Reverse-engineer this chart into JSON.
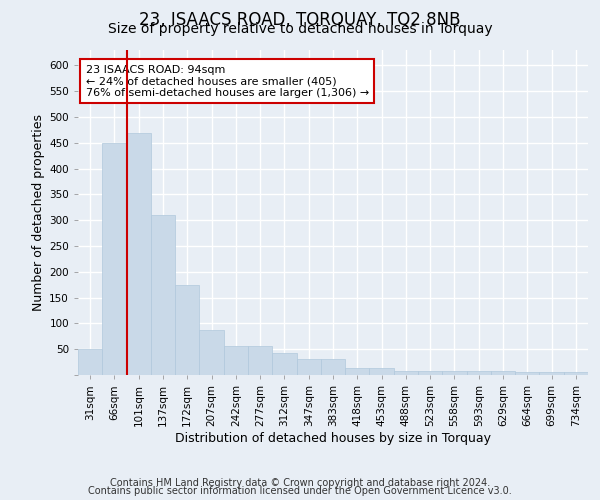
{
  "title": "23, ISAACS ROAD, TORQUAY, TQ2 8NB",
  "subtitle": "Size of property relative to detached houses in Torquay",
  "xlabel": "Distribution of detached houses by size in Torquay",
  "ylabel": "Number of detached properties",
  "bar_color": "#c9d9e8",
  "bar_edge_color": "#b0c8dc",
  "bar_values": [
    50,
    450,
    470,
    310,
    175,
    88,
    57,
    57,
    43,
    31,
    31,
    14,
    14,
    8,
    8,
    8,
    8,
    8,
    5,
    5,
    5
  ],
  "bar_labels": [
    "31sqm",
    "66sqm",
    "101sqm",
    "137sqm",
    "172sqm",
    "207sqm",
    "242sqm",
    "277sqm",
    "312sqm",
    "347sqm",
    "383sqm",
    "418sqm",
    "453sqm",
    "488sqm",
    "523sqm",
    "558sqm",
    "593sqm",
    "629sqm",
    "664sqm",
    "699sqm",
    "734sqm"
  ],
  "ylim": [
    0,
    630
  ],
  "yticks": [
    0,
    50,
    100,
    150,
    200,
    250,
    300,
    350,
    400,
    450,
    500,
    550,
    600
  ],
  "red_line_x": 1.5,
  "red_line_color": "#cc0000",
  "annotation_text": "23 ISAACS ROAD: 94sqm\n← 24% of detached houses are smaller (405)\n76% of semi-detached houses are larger (1,306) →",
  "annotation_box_color": "#ffffff",
  "annotation_box_edge_color": "#cc0000",
  "footer_line1": "Contains HM Land Registry data © Crown copyright and database right 2024.",
  "footer_line2": "Contains public sector information licensed under the Open Government Licence v3.0.",
  "background_color": "#e8eef5",
  "plot_bg_color": "#e8eef5",
  "grid_color": "#ffffff",
  "title_fontsize": 12,
  "subtitle_fontsize": 10,
  "label_fontsize": 9,
  "tick_fontsize": 7.5,
  "annotation_fontsize": 8,
  "footer_fontsize": 7
}
